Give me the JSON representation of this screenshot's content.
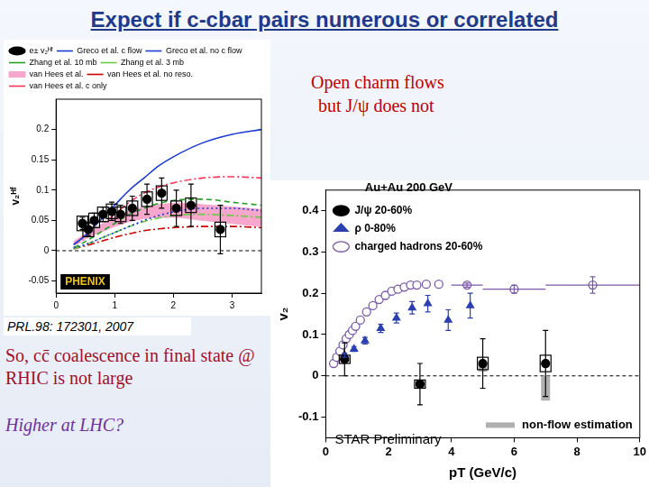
{
  "title": "Expect if c-cbar pairs numerous or correlated",
  "note": [
    "Open charm flows",
    "but J/ψ does not"
  ],
  "reference": "PRL.98: 172301, 2007",
  "conclusion": "So, cc̄ coalescence in final state @ RHIC is not large",
  "question": "Higher at LHC?",
  "chart_data": [
    {
      "type": "scatter",
      "y_label": "v₂ᴴᶠ",
      "xlim": [
        0,
        3.5
      ],
      "xticks": [
        0,
        1,
        2,
        3
      ],
      "ylim": [
        -0.07,
        0.25
      ],
      "yticks": [
        -0.05,
        0,
        0.05,
        0.1,
        0.15,
        0.2
      ],
      "grid": false,
      "legend": "top",
      "annotations": [
        "PHENIX"
      ],
      "series": [
        {
          "name": "e± v₂ᴴᶠ",
          "type": "scatter",
          "marker": "circle",
          "color": "#000000",
          "x": [
            0.45,
            0.55,
            0.65,
            0.8,
            0.95,
            1.1,
            1.3,
            1.55,
            1.8,
            2.05,
            2.3,
            2.8
          ],
          "values": [
            0.045,
            0.035,
            0.05,
            0.06,
            0.065,
            0.06,
            0.07,
            0.085,
            0.095,
            0.07,
            0.075,
            0.035
          ],
          "yerr": [
            0.01,
            0.01,
            0.012,
            0.012,
            0.015,
            0.015,
            0.02,
            0.025,
            0.025,
            0.03,
            0.035,
            0.04
          ],
          "syst": [
            0.012,
            0.012,
            0.012,
            0.012,
            0.012,
            0.012,
            0.012,
            0.012,
            0.012,
            0.012,
            0.012,
            0.012
          ]
        },
        {
          "name": "Greco et al. c flow",
          "type": "line",
          "line_style": "solid",
          "color": "#1a3ad6",
          "x": [
            0.3,
            0.5,
            0.75,
            1,
            1.25,
            1.5,
            1.75,
            2,
            2.5,
            3,
            3.5
          ],
          "values": [
            0.01,
            0.025,
            0.05,
            0.075,
            0.1,
            0.12,
            0.14,
            0.155,
            0.178,
            0.192,
            0.2
          ]
        },
        {
          "name": "Greco et al. no c flow",
          "type": "line",
          "line_style": "dotted",
          "color": "#1a3ad6",
          "x": [
            0.3,
            0.5,
            0.75,
            1,
            1.25,
            1.5,
            1.75,
            2,
            2.5,
            3,
            3.5
          ],
          "values": [
            0.005,
            0.01,
            0.02,
            0.03,
            0.04,
            0.05,
            0.058,
            0.064,
            0.07,
            0.07,
            0.066
          ]
        },
        {
          "name": "Zhang et al. 10 mb",
          "type": "line",
          "line_style": "dashed",
          "color": "#22a022",
          "x": [
            0.3,
            0.5,
            0.75,
            1,
            1.25,
            1.5,
            1.75,
            2,
            2.5,
            3,
            3.5
          ],
          "values": [
            0.005,
            0.015,
            0.03,
            0.045,
            0.06,
            0.07,
            0.078,
            0.083,
            0.085,
            0.08,
            0.075
          ]
        },
        {
          "name": "Zhang et al. 3 mb",
          "type": "line",
          "line_style": "dashdot",
          "color": "#66cc44",
          "x": [
            0.3,
            0.5,
            0.75,
            1,
            1.25,
            1.5,
            1.75,
            2,
            2.5,
            3,
            3.5
          ],
          "values": [
            0.003,
            0.01,
            0.02,
            0.03,
            0.04,
            0.048,
            0.054,
            0.058,
            0.06,
            0.058,
            0.055
          ]
        },
        {
          "name": "van Hees et al.",
          "type": "band",
          "color": "#f7a6cc",
          "x": [
            0.3,
            0.5,
            0.75,
            1,
            1.25,
            1.5,
            1.75,
            2,
            2.5,
            3,
            3.5
          ],
          "lower": [
            0.01,
            0.02,
            0.03,
            0.04,
            0.048,
            0.053,
            0.055,
            0.055,
            0.05,
            0.045,
            0.04
          ],
          "upper": [
            0.015,
            0.028,
            0.042,
            0.055,
            0.065,
            0.072,
            0.076,
            0.078,
            0.076,
            0.072,
            0.068
          ]
        },
        {
          "name": "van Hees et al. no reso.",
          "type": "line",
          "line_style": "dashdot",
          "color": "#cc0000",
          "x": [
            0.3,
            0.5,
            0.75,
            1,
            1.25,
            1.5,
            1.75,
            2,
            2.5,
            3,
            3.5
          ],
          "values": [
            0.003,
            0.008,
            0.015,
            0.022,
            0.028,
            0.033,
            0.036,
            0.038,
            0.04,
            0.04,
            0.038
          ]
        },
        {
          "name": "van Hees et al. c only",
          "type": "line",
          "line_style": "dashdot",
          "color": "#ff3355",
          "x": [
            0.3,
            0.5,
            0.75,
            1,
            1.25,
            1.5,
            1.75,
            2,
            2.5,
            3,
            3.5
          ],
          "values": [
            0.01,
            0.02,
            0.04,
            0.06,
            0.08,
            0.095,
            0.105,
            0.112,
            0.12,
            0.122,
            0.12
          ]
        }
      ]
    },
    {
      "type": "scatter",
      "x_label": "pT (GeV/c)",
      "y_label": "v₂",
      "xlim": [
        0,
        10
      ],
      "xticks": [
        0,
        2,
        4,
        6,
        8,
        10
      ],
      "ylim": [
        -0.15,
        0.45
      ],
      "yticks": [
        -0.1,
        0,
        0.1,
        0.2,
        0.3,
        0.4
      ],
      "grid": false,
      "legend": "upper left",
      "legend_title": "Au+Au 200 GeV",
      "annotations": [
        "STAR Preliminary"
      ],
      "series": [
        {
          "name": "J/ψ 20-60%",
          "type": "scatter",
          "marker": "circle",
          "color": "#000000",
          "x": [
            0.6,
            3.0,
            5.0,
            7.0
          ],
          "values": [
            0.04,
            -0.02,
            0.03,
            0.03
          ],
          "yerr": [
            0.04,
            0.05,
            0.06,
            0.08
          ],
          "syst": [
            0.01,
            0.01,
            0.015,
            0.02
          ]
        },
        {
          "name": "ρ 0-80%",
          "type": "scatter",
          "marker": "triangle",
          "color": "#2a3fb0",
          "x": [
            0.6,
            0.9,
            1.25,
            1.75,
            2.25,
            2.75,
            3.25,
            3.9,
            4.6
          ],
          "values": [
            0.05,
            0.065,
            0.085,
            0.115,
            0.14,
            0.165,
            0.175,
            0.135,
            0.17
          ],
          "yerr": [
            0.005,
            0.006,
            0.008,
            0.01,
            0.012,
            0.015,
            0.02,
            0.025,
            0.03
          ]
        },
        {
          "name": "charged hadrons 20-60%",
          "type": "scatter",
          "marker": "circle_open",
          "color": "#7a5aa8",
          "x": [
            0.25,
            0.35,
            0.45,
            0.55,
            0.65,
            0.75,
            0.85,
            0.95,
            1.1,
            1.3,
            1.5,
            1.7,
            1.9,
            2.1,
            2.3,
            2.5,
            2.7,
            2.9,
            3.2,
            3.6,
            4.5,
            6.0,
            8.5
          ],
          "values": [
            0.03,
            0.045,
            0.06,
            0.075,
            0.09,
            0.1,
            0.11,
            0.12,
            0.135,
            0.155,
            0.17,
            0.185,
            0.195,
            0.205,
            0.21,
            0.215,
            0.22,
            0.22,
            0.222,
            0.222,
            0.22,
            0.21,
            0.22
          ],
          "yerr": [
            0,
            0,
            0,
            0,
            0,
            0,
            0,
            0,
            0,
            0,
            0,
            0,
            0,
            0,
            0,
            0,
            0,
            0,
            0,
            0,
            0.005,
            0.01,
            0.02
          ],
          "xerr": [
            0,
            0,
            0,
            0,
            0,
            0,
            0,
            0,
            0,
            0,
            0,
            0,
            0,
            0,
            0,
            0,
            0,
            0,
            0,
            0,
            0.5,
            1.0,
            1.5
          ]
        }
      ],
      "nonflow": {
        "name": "non-flow estimation",
        "color": "#b0b0b0",
        "x": [
          3.0,
          5.0,
          7.0
        ],
        "low": [
          -0.03,
          0.01,
          -0.06
        ],
        "high": [
          -0.01,
          0.03,
          0.0
        ]
      }
    }
  ]
}
